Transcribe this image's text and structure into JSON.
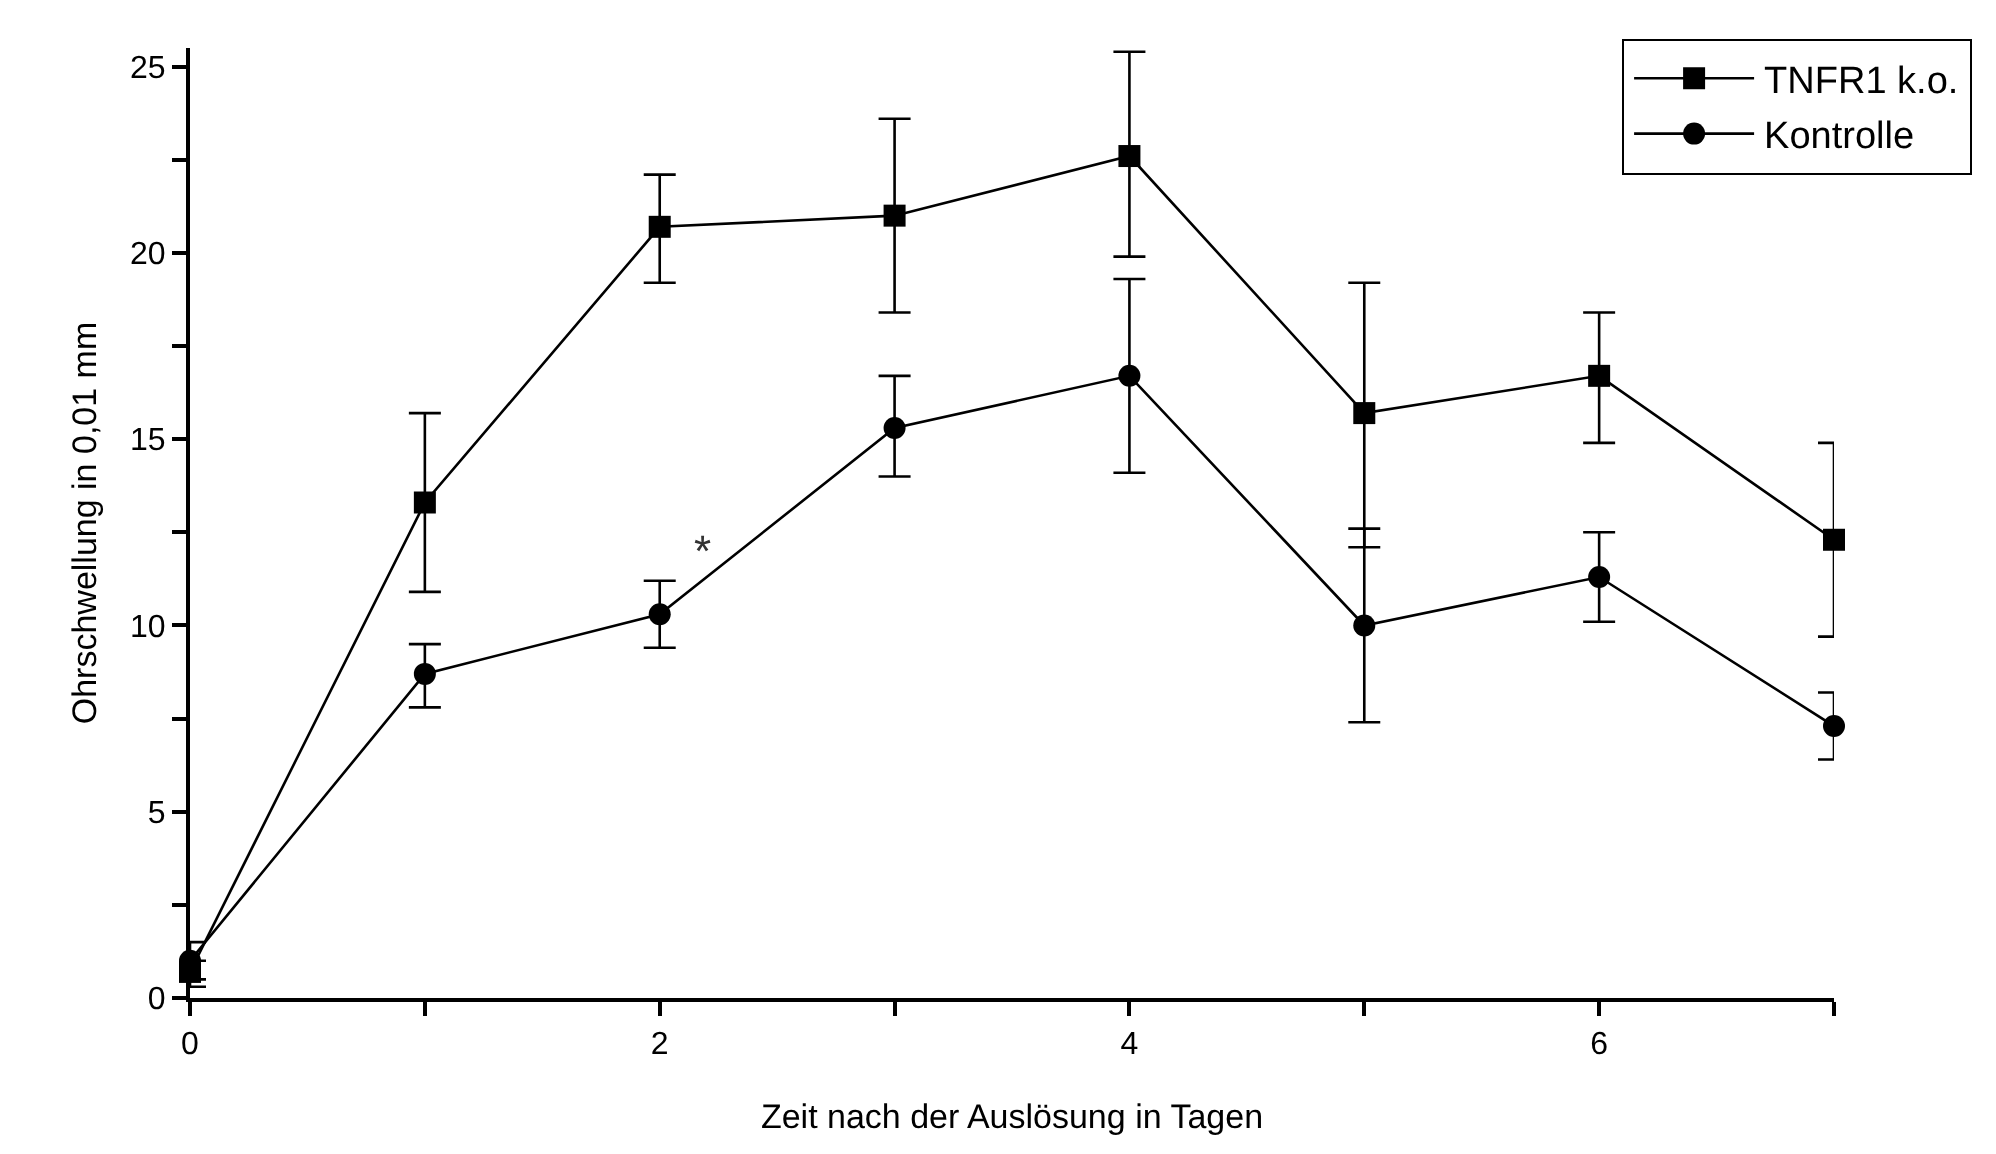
{
  "chart_data": {
    "type": "line",
    "xlabel": "Zeit nach der Auslösung in Tagen",
    "ylabel": "Ohrschwellung in 0,01 mm",
    "x": [
      0,
      1,
      2,
      3,
      4,
      5,
      6,
      7
    ],
    "series": [
      {
        "name": "TNFR1 k.o.",
        "color": "#000000",
        "marker": "square",
        "values": [
          0.7,
          13.3,
          20.7,
          21.0,
          22.6,
          15.7,
          16.7,
          12.3
        ],
        "errors": [
          [
            0.3,
            1.5
          ],
          [
            10.9,
            15.7
          ],
          [
            19.2,
            22.1
          ],
          [
            18.4,
            23.6
          ],
          [
            19.9,
            25.4
          ],
          [
            12.1,
            19.2
          ],
          [
            14.9,
            18.4
          ],
          [
            9.7,
            14.9
          ]
        ]
      },
      {
        "name": "Kontrolle",
        "color": "#000000",
        "marker": "circle",
        "values": [
          1.0,
          8.7,
          10.3,
          15.3,
          16.7,
          10.0,
          11.3,
          7.3
        ],
        "errors": [
          [
            0.5,
            1.0
          ],
          [
            7.8,
            9.5
          ],
          [
            9.4,
            11.2
          ],
          [
            14.0,
            16.7
          ],
          [
            14.1,
            19.3
          ],
          [
            7.4,
            12.6
          ],
          [
            10.1,
            12.5
          ],
          [
            6.4,
            8.2
          ]
        ]
      }
    ],
    "xlim": [
      0,
      7
    ],
    "xticks": [
      0,
      {
        "value": 1,
        "label": null
      },
      2,
      {
        "value": 3,
        "label": null
      },
      4,
      {
        "value": 5,
        "label": null
      },
      6,
      {
        "value": 7,
        "label": null
      }
    ],
    "ylim": [
      0,
      25.5
    ],
    "yticks": [
      0,
      {
        "value": 2.5,
        "label": null
      },
      5,
      {
        "value": 7.5,
        "label": null
      },
      10,
      {
        "value": 12.5,
        "label": null
      },
      15,
      {
        "value": 17.5,
        "label": null
      },
      20,
      {
        "value": 22.5,
        "label": null
      },
      25
    ],
    "annotations": [
      "*"
    ],
    "legend": "top right",
    "line_style": "solid"
  }
}
